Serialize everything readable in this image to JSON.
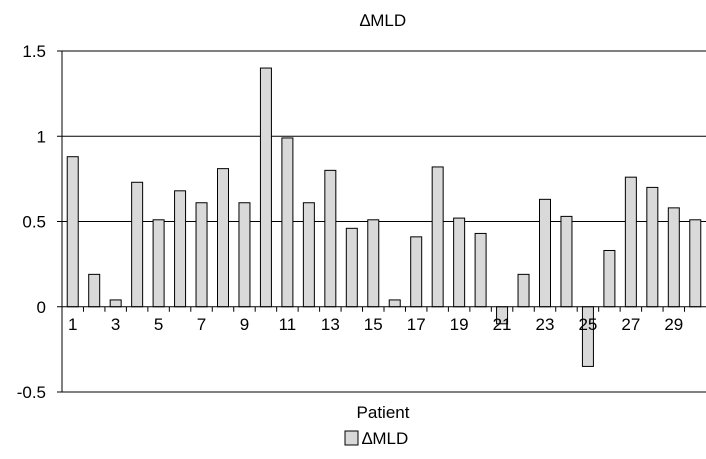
{
  "chart_data": {
    "type": "bar",
    "title": "∆MLD",
    "xlabel": "Patient",
    "ylabel": "",
    "ylim": [
      -0.5,
      1.5
    ],
    "yticks": [
      -0.5,
      0,
      0.5,
      1,
      1.5
    ],
    "ytick_labels": [
      "-0.5",
      "0",
      "0.5",
      "1",
      "1.5"
    ],
    "categories": [
      "1",
      "2",
      "3",
      "4",
      "5",
      "6",
      "7",
      "8",
      "9",
      "10",
      "11",
      "12",
      "13",
      "14",
      "15",
      "16",
      "17",
      "18",
      "19",
      "20",
      "21",
      "22",
      "23",
      "24",
      "25",
      "26",
      "27",
      "28",
      "29",
      "30"
    ],
    "shown_xtick_labels": [
      "1",
      "3",
      "5",
      "7",
      "9",
      "11",
      "13",
      "15",
      "17",
      "19",
      "21",
      "23",
      "25",
      "27",
      "29"
    ],
    "series": [
      {
        "name": "∆MLD",
        "values": [
          0.88,
          0.19,
          0.04,
          0.73,
          0.51,
          0.68,
          0.61,
          0.81,
          0.61,
          1.4,
          0.99,
          0.61,
          0.8,
          0.46,
          0.51,
          0.04,
          0.41,
          0.82,
          0.52,
          0.43,
          -0.1,
          0.19,
          0.63,
          0.53,
          -0.35,
          0.33,
          0.76,
          0.7,
          0.58,
          0.51
        ]
      }
    ],
    "grid": "horizontal-major",
    "legend_position": "bottom-center",
    "colors": {
      "bar_fill": "#d9d9d9",
      "bar_stroke": "#000000",
      "grid": "#000000"
    }
  }
}
